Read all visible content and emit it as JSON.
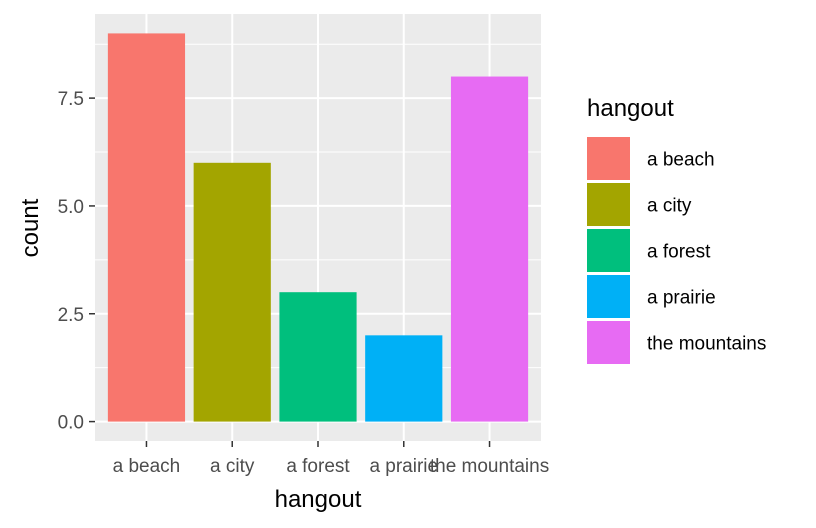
{
  "chart_data": {
    "type": "bar",
    "categories": [
      "a beach",
      "a city",
      "a forest",
      "a prairie",
      "the mountains"
    ],
    "values": [
      9,
      6,
      3,
      2,
      8
    ],
    "colors": [
      "#F8766D",
      "#A3A500",
      "#00BF7D",
      "#00B0F6",
      "#E76BF3"
    ],
    "xlabel": "hangout",
    "ylabel": "count",
    "ylim": [
      -0.45,
      9.45
    ],
    "yticks": [
      0.0,
      2.5,
      5.0,
      7.5
    ],
    "ytick_labels": [
      "0.0",
      "2.5",
      "5.0",
      "7.5"
    ],
    "grid": true,
    "panel_background": "#EBEBEB",
    "grid_color": "#FFFFFF",
    "legend": {
      "title": "hangout",
      "position": "right",
      "entries": [
        "a beach",
        "a city",
        "a forest",
        "a prairie",
        "the mountains"
      ]
    }
  }
}
